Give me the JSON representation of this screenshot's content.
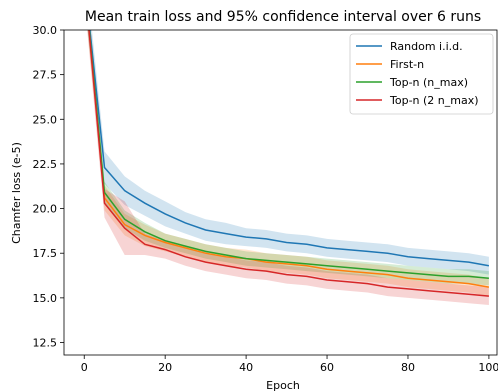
{
  "chart_data": {
    "type": "line",
    "title": "Mean train loss and 95% confidence interval over 6 runs",
    "xlabel": "Epoch",
    "ylabel": "Chamfer loss (e-5)",
    "xlim": [
      -5,
      102
    ],
    "ylim": [
      11.8,
      30.0
    ],
    "xticks": [
      "0",
      "20",
      "40",
      "60",
      "80",
      "100"
    ],
    "yticks": [
      "12.5",
      "15.0",
      "17.5",
      "20.0",
      "22.5",
      "25.0",
      "27.5",
      "30.0"
    ],
    "grid": false,
    "legend_position": "top-right",
    "x": [
      0,
      5,
      10,
      15,
      20,
      25,
      30,
      35,
      40,
      45,
      50,
      55,
      60,
      65,
      70,
      75,
      80,
      85,
      90,
      95,
      100
    ],
    "series": [
      {
        "name": "Random i.i.d.",
        "color": "#1f77b4",
        "values": [
          33.0,
          22.3,
          21.0,
          20.3,
          19.7,
          19.2,
          18.8,
          18.6,
          18.4,
          18.3,
          18.1,
          18.0,
          17.8,
          17.7,
          17.6,
          17.5,
          17.3,
          17.2,
          17.1,
          17.0,
          16.8
        ],
        "ci": [
          1.2,
          0.9,
          0.8,
          0.7,
          0.7,
          0.6,
          0.6,
          0.6,
          0.5,
          0.5,
          0.5,
          0.5,
          0.5,
          0.5,
          0.5,
          0.5,
          0.5,
          0.5,
          0.5,
          0.5,
          0.5
        ]
      },
      {
        "name": "First-n",
        "color": "#ff7f0e",
        "values": [
          33.0,
          20.6,
          19.1,
          18.5,
          18.1,
          17.8,
          17.5,
          17.3,
          17.2,
          17.0,
          16.9,
          16.8,
          16.6,
          16.5,
          16.4,
          16.3,
          16.1,
          16.0,
          15.9,
          15.8,
          15.6
        ],
        "ci": [
          1.0,
          0.7,
          0.6,
          0.6,
          0.5,
          0.5,
          0.5,
          0.5,
          0.5,
          0.5,
          0.5,
          0.5,
          0.5,
          0.5,
          0.5,
          0.5,
          0.5,
          0.5,
          0.5,
          0.5,
          0.5
        ]
      },
      {
        "name": "Top-n (n_max)",
        "color": "#2ca02c",
        "values": [
          33.0,
          20.9,
          19.4,
          18.7,
          18.2,
          17.9,
          17.6,
          17.4,
          17.2,
          17.1,
          17.0,
          16.9,
          16.8,
          16.7,
          16.6,
          16.5,
          16.4,
          16.3,
          16.2,
          16.2,
          16.1
        ],
        "ci": [
          1.0,
          0.6,
          0.5,
          0.5,
          0.4,
          0.4,
          0.4,
          0.4,
          0.4,
          0.4,
          0.4,
          0.4,
          0.4,
          0.4,
          0.4,
          0.4,
          0.4,
          0.4,
          0.4,
          0.4,
          0.4
        ]
      },
      {
        "name": "Top-n (2 n_max)",
        "color": "#d62728",
        "values": [
          33.0,
          20.3,
          18.9,
          18.0,
          17.7,
          17.3,
          17.0,
          16.8,
          16.6,
          16.5,
          16.3,
          16.2,
          16.0,
          15.9,
          15.8,
          15.6,
          15.5,
          15.4,
          15.3,
          15.2,
          15.1
        ],
        "ci": [
          1.2,
          0.8,
          1.5,
          0.6,
          0.5,
          0.5,
          0.5,
          0.5,
          0.5,
          0.5,
          0.5,
          0.5,
          0.5,
          0.5,
          0.5,
          0.5,
          0.5,
          0.5,
          0.5,
          0.5,
          0.5
        ]
      }
    ]
  }
}
